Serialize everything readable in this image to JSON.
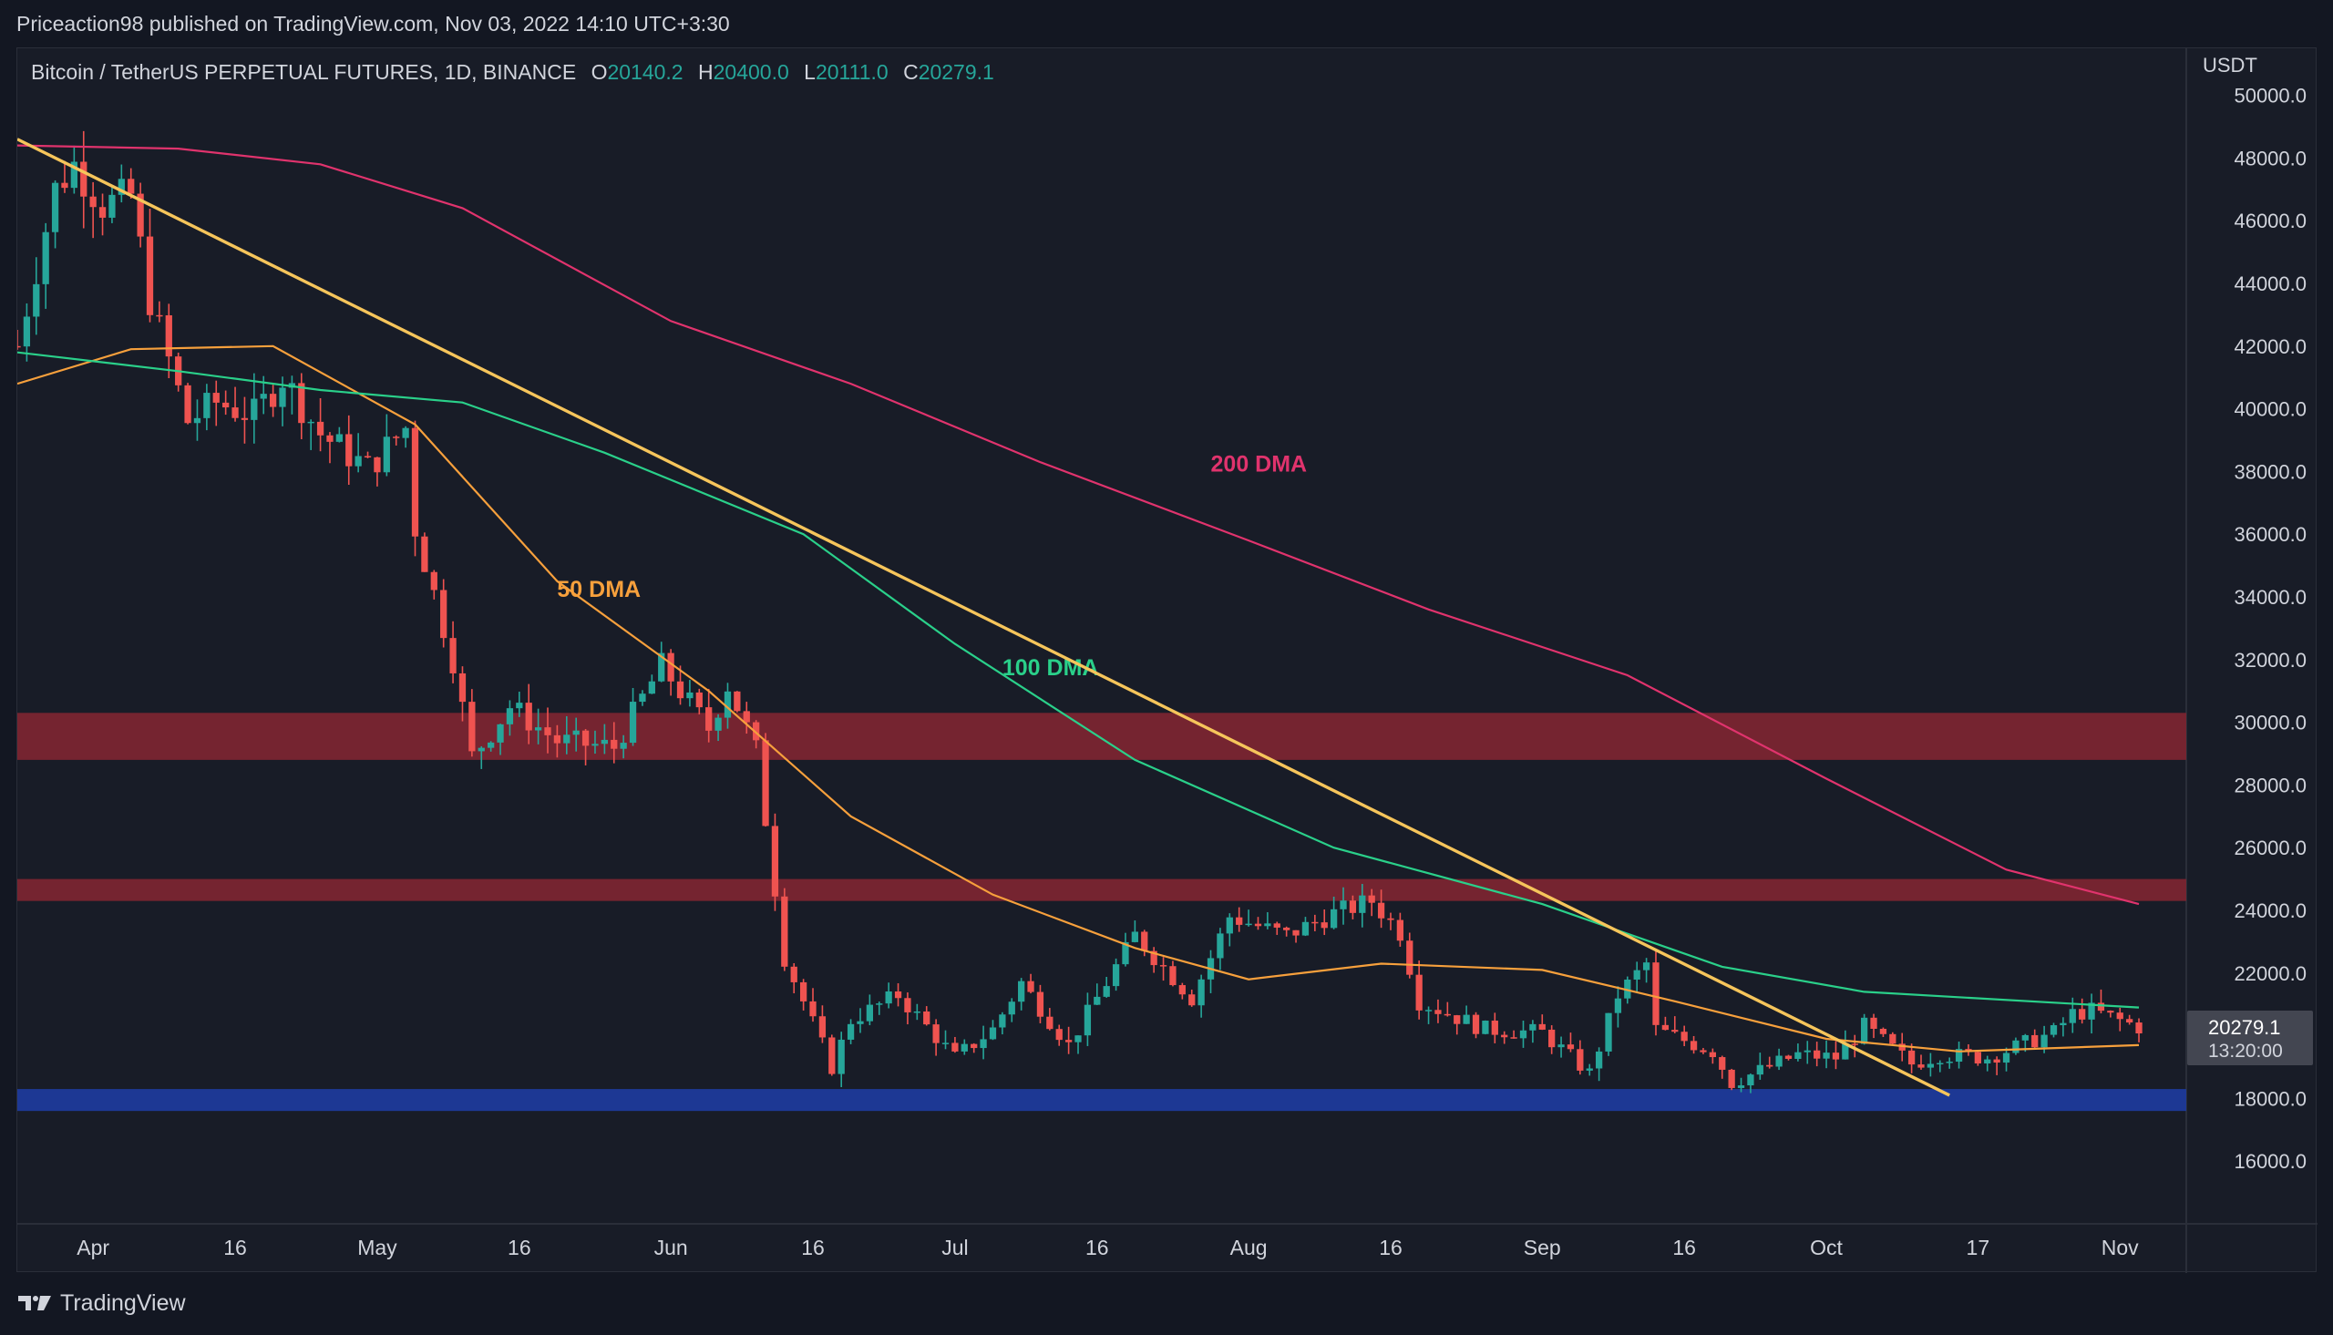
{
  "header": {
    "publisher": "Priceaction98 published on TradingView.com, Nov 03, 2022 14:10 UTC+3:30"
  },
  "legend": {
    "symbol": "Bitcoin / TetherUS PERPETUAL FUTURES, 1D, BINANCE",
    "o_label": "O",
    "o": "20140.2",
    "h_label": "H",
    "h": "20400.0",
    "l_label": "L",
    "l": "20111.0",
    "c_label": "C",
    "c": "20279.1"
  },
  "footer": {
    "brand": "TradingView"
  },
  "colors": {
    "up": "#26a69a",
    "down": "#ef5350",
    "ma50": "#f7a03c",
    "ma100": "#2ad08a",
    "ma200": "#e0336d",
    "trend": "#f6c55b",
    "zone_red": "#7a2530",
    "zone_blue": "#1e3a9a"
  },
  "chart_data": {
    "type": "candlestick",
    "y_unit": "USDT",
    "ylim": [
      14000,
      51500
    ],
    "y_ticks": [
      "16000.0",
      "18000.0",
      "20000.0",
      "22000.0",
      "24000.0",
      "26000.0",
      "28000.0",
      "30000.0",
      "32000.0",
      "34000.0",
      "36000.0",
      "38000.0",
      "40000.0",
      "42000.0",
      "44000.0",
      "46000.0",
      "48000.0",
      "50000.0"
    ],
    "x_range": [
      "2022-03-24",
      "2022-11-08"
    ],
    "x_ticks": [
      {
        "date": "2022-04-01",
        "label": "Apr"
      },
      {
        "date": "2022-04-16",
        "label": "16"
      },
      {
        "date": "2022-05-01",
        "label": "May"
      },
      {
        "date": "2022-05-16",
        "label": "16"
      },
      {
        "date": "2022-06-01",
        "label": "Jun"
      },
      {
        "date": "2022-06-16",
        "label": "16"
      },
      {
        "date": "2022-07-01",
        "label": "Jul"
      },
      {
        "date": "2022-07-16",
        "label": "16"
      },
      {
        "date": "2022-08-01",
        "label": "Aug"
      },
      {
        "date": "2022-08-16",
        "label": "16"
      },
      {
        "date": "2022-09-01",
        "label": "Sep"
      },
      {
        "date": "2022-09-16",
        "label": "16"
      },
      {
        "date": "2022-10-01",
        "label": "Oct"
      },
      {
        "date": "2022-10-17",
        "label": "17"
      },
      {
        "date": "2022-11-01",
        "label": "Nov"
      }
    ],
    "last_price": {
      "value": 20279.1,
      "label": "20279.1",
      "countdown": "13:20:00"
    },
    "zones": [
      {
        "name": "resistance-30k",
        "low": 28800,
        "high": 30300,
        "color": "#7a2530"
      },
      {
        "name": "resistance-24.5k",
        "low": 24300,
        "high": 25000,
        "color": "#7a2530"
      },
      {
        "name": "support-18k",
        "low": 17600,
        "high": 18300,
        "color": "#1e3a9a"
      }
    ],
    "trendlines": [
      {
        "name": "main-downtrend",
        "points": [
          [
            "2022-03-24",
            48600
          ],
          [
            "2022-10-14",
            18100
          ]
        ],
        "color": "#f6c55b"
      }
    ],
    "anchors": [
      [
        "2022-03-24",
        42000
      ],
      [
        "2022-03-28",
        47000
      ],
      [
        "2022-03-30",
        47800
      ],
      [
        "2022-04-02",
        46500
      ],
      [
        "2022-04-05",
        46800
      ],
      [
        "2022-04-07",
        43500
      ],
      [
        "2022-04-11",
        39600
      ],
      [
        "2022-04-14",
        40200
      ],
      [
        "2022-04-18",
        39800
      ],
      [
        "2022-04-21",
        41000
      ],
      [
        "2022-04-25",
        39200
      ],
      [
        "2022-04-30",
        38100
      ],
      [
        "2022-05-04",
        39400
      ],
      [
        "2022-05-05",
        36200
      ],
      [
        "2022-05-09",
        32000
      ],
      [
        "2022-05-11",
        28900
      ],
      [
        "2022-05-15",
        30500
      ],
      [
        "2022-05-20",
        29400
      ],
      [
        "2022-05-26",
        29200
      ],
      [
        "2022-05-31",
        31800
      ],
      [
        "2022-06-05",
        29800
      ],
      [
        "2022-06-07",
        31200
      ],
      [
        "2022-06-10",
        29100
      ],
      [
        "2022-06-13",
        22500
      ],
      [
        "2022-06-18",
        19000
      ],
      [
        "2022-06-20",
        20500
      ],
      [
        "2022-06-25",
        21300
      ],
      [
        "2022-07-01",
        19300
      ],
      [
        "2022-07-05",
        20200
      ],
      [
        "2022-07-08",
        21700
      ],
      [
        "2022-07-13",
        19700
      ],
      [
        "2022-07-16",
        21200
      ],
      [
        "2022-07-20",
        23200
      ],
      [
        "2022-07-26",
        21200
      ],
      [
        "2022-07-30",
        23800
      ],
      [
        "2022-08-05",
        23200
      ],
      [
        "2022-08-10",
        23900
      ],
      [
        "2022-08-14",
        24300
      ],
      [
        "2022-08-17",
        23300
      ],
      [
        "2022-08-19",
        21100
      ],
      [
        "2022-08-26",
        20200
      ],
      [
        "2022-09-01",
        20100
      ],
      [
        "2022-09-06",
        18800
      ],
      [
        "2022-09-09",
        21300
      ],
      [
        "2022-09-12",
        22300
      ],
      [
        "2022-09-13",
        20200
      ],
      [
        "2022-09-19",
        19500
      ],
      [
        "2022-09-21",
        18500
      ],
      [
        "2022-09-28",
        19400
      ],
      [
        "2022-10-02",
        19300
      ],
      [
        "2022-10-05",
        20300
      ],
      [
        "2022-10-10",
        19100
      ],
      [
        "2022-10-13",
        19400
      ],
      [
        "2022-10-18",
        19300
      ],
      [
        "2022-10-25",
        20100
      ],
      [
        "2022-10-27",
        20700
      ],
      [
        "2022-10-29",
        20800
      ],
      [
        "2022-11-03",
        20279.1
      ]
    ],
    "moving_averages": [
      {
        "name": "50 DMA",
        "label": "50 DMA",
        "color": "#f7a03c",
        "label_at": [
          "2022-05-20",
          34000
        ],
        "points": [
          [
            "2022-03-24",
            40800
          ],
          [
            "2022-04-05",
            41900
          ],
          [
            "2022-04-20",
            42000
          ],
          [
            "2022-05-05",
            39500
          ],
          [
            "2022-05-20",
            34500
          ],
          [
            "2022-06-05",
            31000
          ],
          [
            "2022-06-20",
            27000
          ],
          [
            "2022-07-05",
            24500
          ],
          [
            "2022-07-20",
            22800
          ],
          [
            "2022-08-01",
            21800
          ],
          [
            "2022-08-15",
            22300
          ],
          [
            "2022-09-01",
            22100
          ],
          [
            "2022-09-15",
            21100
          ],
          [
            "2022-10-01",
            19900
          ],
          [
            "2022-10-15",
            19500
          ],
          [
            "2022-11-03",
            19700
          ]
        ]
      },
      {
        "name": "100 DMA",
        "label": "100 DMA",
        "color": "#2ad08a",
        "label_at": [
          "2022-07-06",
          31500
        ],
        "points": [
          [
            "2022-03-24",
            41800
          ],
          [
            "2022-04-10",
            41200
          ],
          [
            "2022-04-25",
            40600
          ],
          [
            "2022-05-10",
            40200
          ],
          [
            "2022-05-25",
            38600
          ],
          [
            "2022-06-15",
            36000
          ],
          [
            "2022-07-01",
            32500
          ],
          [
            "2022-07-20",
            28800
          ],
          [
            "2022-08-10",
            26000
          ],
          [
            "2022-09-01",
            24200
          ],
          [
            "2022-09-20",
            22200
          ],
          [
            "2022-10-05",
            21400
          ],
          [
            "2022-11-03",
            20900
          ]
        ]
      },
      {
        "name": "200 DMA",
        "label": "200 DMA",
        "color": "#e0336d",
        "label_at": [
          "2022-07-28",
          38000
        ],
        "points": [
          [
            "2022-03-24",
            48400
          ],
          [
            "2022-04-10",
            48300
          ],
          [
            "2022-04-25",
            47800
          ],
          [
            "2022-05-10",
            46400
          ],
          [
            "2022-06-01",
            42800
          ],
          [
            "2022-06-20",
            40800
          ],
          [
            "2022-07-10",
            38300
          ],
          [
            "2022-08-01",
            35800
          ],
          [
            "2022-08-20",
            33600
          ],
          [
            "2022-09-10",
            31500
          ],
          [
            "2022-10-01",
            28200
          ],
          [
            "2022-10-20",
            25300
          ],
          [
            "2022-11-03",
            24200
          ]
        ]
      }
    ]
  }
}
